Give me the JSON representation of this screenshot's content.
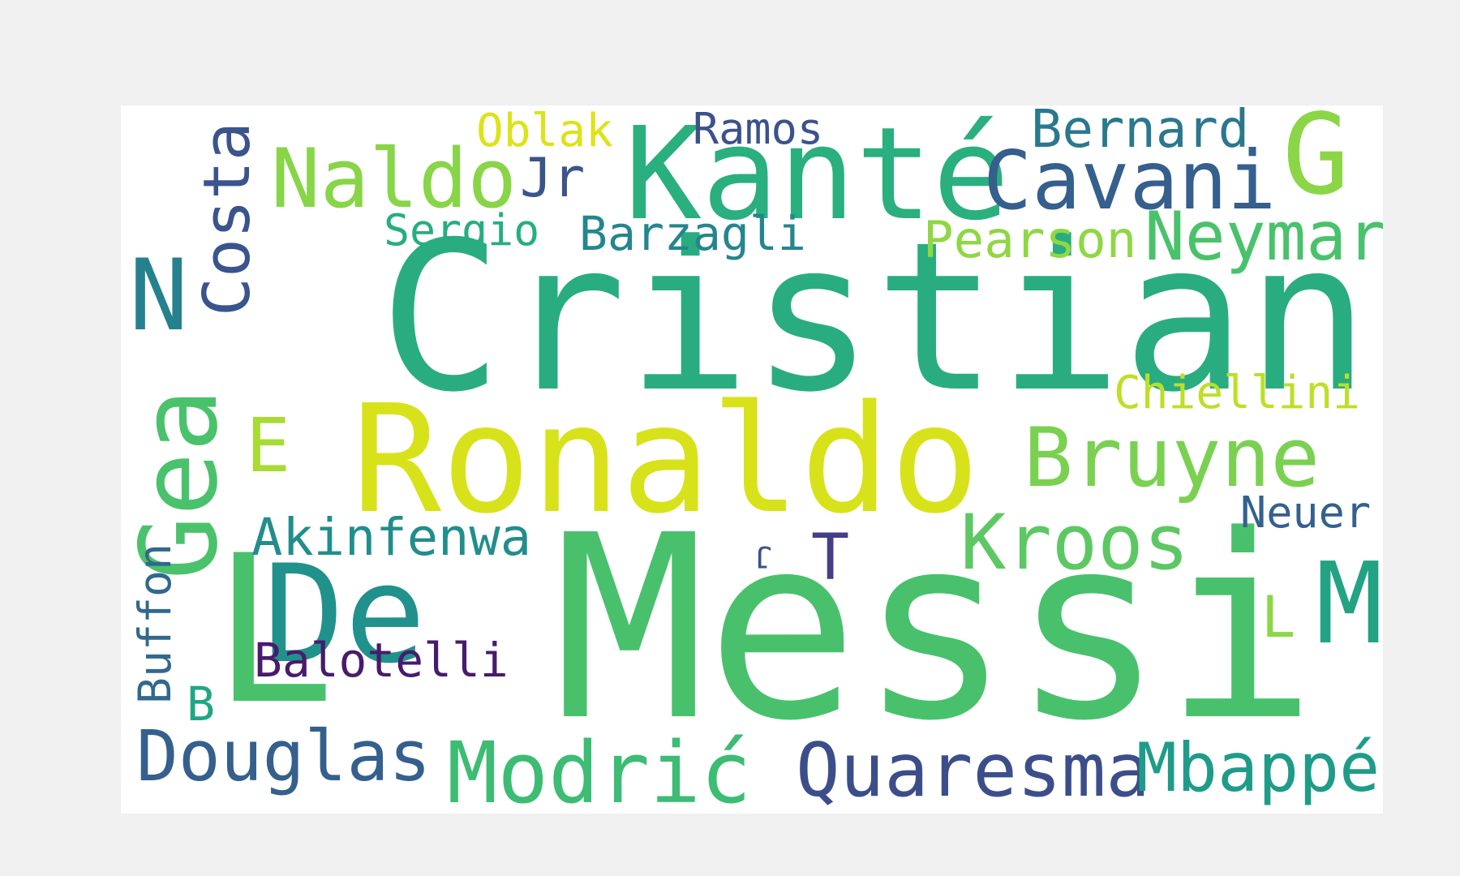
{
  "words": [
    {
      "text": "Cristiano",
      "color": "#29ad80",
      "weight": 1.0
    },
    {
      "text": "Messi",
      "color": "#49c16c",
      "weight": 0.98
    },
    {
      "text": "Ronaldo",
      "color": "#d8e21a",
      "weight": 0.66
    },
    {
      "text": "L",
      "color": "#49c16c",
      "weight": 0.95
    },
    {
      "text": "De",
      "color": "#21918c",
      "weight": 0.58
    },
    {
      "text": "Kanté",
      "color": "#2aaf7f",
      "weight": 0.42
    },
    {
      "text": "Gea",
      "color": "#4ac26c",
      "weight": 0.4
    },
    {
      "text": "N",
      "color": "#26818e",
      "weight": 0.38
    },
    {
      "text": "M",
      "color": "#21a384",
      "weight": 0.38
    },
    {
      "text": "Naldo",
      "color": "#88d548",
      "weight": 0.33
    },
    {
      "text": "Cavani",
      "color": "#355f8d",
      "weight": 0.3
    },
    {
      "text": "Bruyne",
      "color": "#7ad151",
      "weight": 0.3
    },
    {
      "text": "Costa",
      "color": "#3a548c",
      "weight": 0.3
    },
    {
      "text": "G",
      "color": "#8bd646",
      "weight": 0.3
    },
    {
      "text": "Modrić",
      "color": "#3dbc74",
      "weight": 0.3
    },
    {
      "text": "Douglas",
      "color": "#35608d",
      "weight": 0.28
    },
    {
      "text": "Quaresma",
      "color": "#3c4e8a",
      "weight": 0.28
    },
    {
      "text": "Mbappé",
      "color": "#1f9c89",
      "weight": 0.28
    },
    {
      "text": "Kroos",
      "color": "#5dc863",
      "weight": 0.27
    },
    {
      "text": "E",
      "color": "#a8db34",
      "weight": 0.26
    },
    {
      "text": "Neymar",
      "color": "#4ac26c",
      "weight": 0.22
    },
    {
      "text": "L",
      "color": "#8dd645",
      "weight": 0.22
    },
    {
      "text": "T",
      "color": "#433e85",
      "weight": 0.2
    },
    {
      "text": "Jr",
      "color": "#3a548c",
      "weight": 0.18
    },
    {
      "text": "Akinfenwa",
      "color": "#228d8d",
      "weight": 0.18
    },
    {
      "text": "Bernard",
      "color": "#2a788e",
      "weight": 0.17
    },
    {
      "text": "Balotelli",
      "color": "#481b6d",
      "weight": 0.17
    },
    {
      "text": "Pearson",
      "color": "#8fd744",
      "weight": 0.17
    },
    {
      "text": "Barzagli",
      "color": "#24868e",
      "weight": 0.16
    },
    {
      "text": "Sergio",
      "color": "#27ad81",
      "weight": 0.16
    },
    {
      "text": "Chiellini",
      "color": "#bddf26",
      "weight": 0.16
    },
    {
      "text": "Ramos",
      "color": "#3b528b",
      "weight": 0.15
    },
    {
      "text": "Oblak",
      "color": "#dde318",
      "weight": 0.15
    },
    {
      "text": "Buffon",
      "color": "#31688e",
      "weight": 0.14
    },
    {
      "text": "Neuer",
      "color": "#34618d",
      "weight": 0.14
    },
    {
      "text": "B",
      "color": "#21a685",
      "weight": 0.13
    },
    {
      "text": "J",
      "color": "#3b528b",
      "weight": 0.08
    }
  ]
}
